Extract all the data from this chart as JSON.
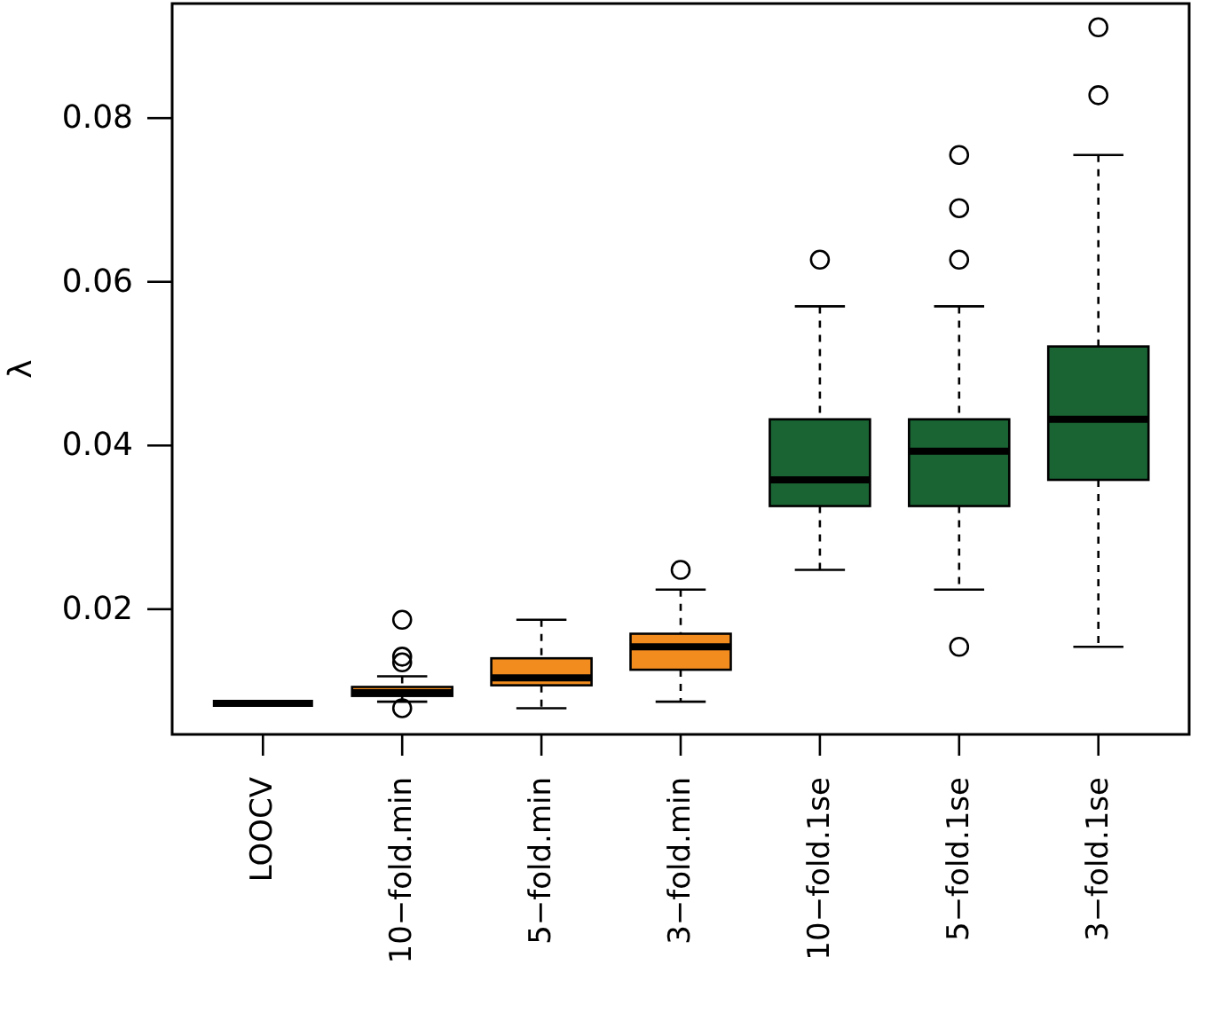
{
  "chart_data": {
    "type": "box",
    "ylabel": "λ",
    "categories": [
      "LOOCV",
      "10−fold.min",
      "5−fold.min",
      "3−fold.min",
      "10−fold.1se",
      "5−fold.1se",
      "3−fold.1se"
    ],
    "colors": [
      "#000000",
      "#f28c1e",
      "#f28c1e",
      "#f28c1e",
      "#1a6333",
      "#1a6333",
      "#1a6333"
    ],
    "boxes": [
      {
        "low": 0.0085,
        "q1": 0.0085,
        "median": 0.0085,
        "q3": 0.0085,
        "high": 0.0085
      },
      {
        "low": 0.0087,
        "q1": 0.0094,
        "median": 0.0098,
        "q3": 0.0105,
        "high": 0.0118,
        "outliers": [
          0.0187,
          0.0142,
          0.0135,
          0.0079
        ]
      },
      {
        "low": 0.0079,
        "q1": 0.0107,
        "median": 0.0116,
        "q3": 0.014,
        "high": 0.0187
      },
      {
        "low": 0.0087,
        "q1": 0.0126,
        "median": 0.0154,
        "q3": 0.017,
        "high": 0.0224,
        "outliers": [
          0.0248
        ]
      },
      {
        "low": 0.0248,
        "q1": 0.0326,
        "median": 0.0358,
        "q3": 0.0432,
        "high": 0.057,
        "outliers": [
          0.0627
        ]
      },
      {
        "low": 0.0224,
        "q1": 0.0326,
        "median": 0.0393,
        "q3": 0.0432,
        "high": 0.057,
        "outliers": [
          0.0755,
          0.069,
          0.0627,
          0.0154
        ]
      },
      {
        "low": 0.0154,
        "q1": 0.0358,
        "median": 0.0432,
        "q3": 0.0521,
        "high": 0.0755,
        "outliers": [
          0.0911,
          0.0828
        ]
      }
    ],
    "ylim": [
      0.0047,
      0.094
    ],
    "yticks": [
      0.02,
      0.04,
      0.06,
      0.08
    ],
    "grid": false,
    "line_style": "dashed",
    "marker": "circle"
  }
}
